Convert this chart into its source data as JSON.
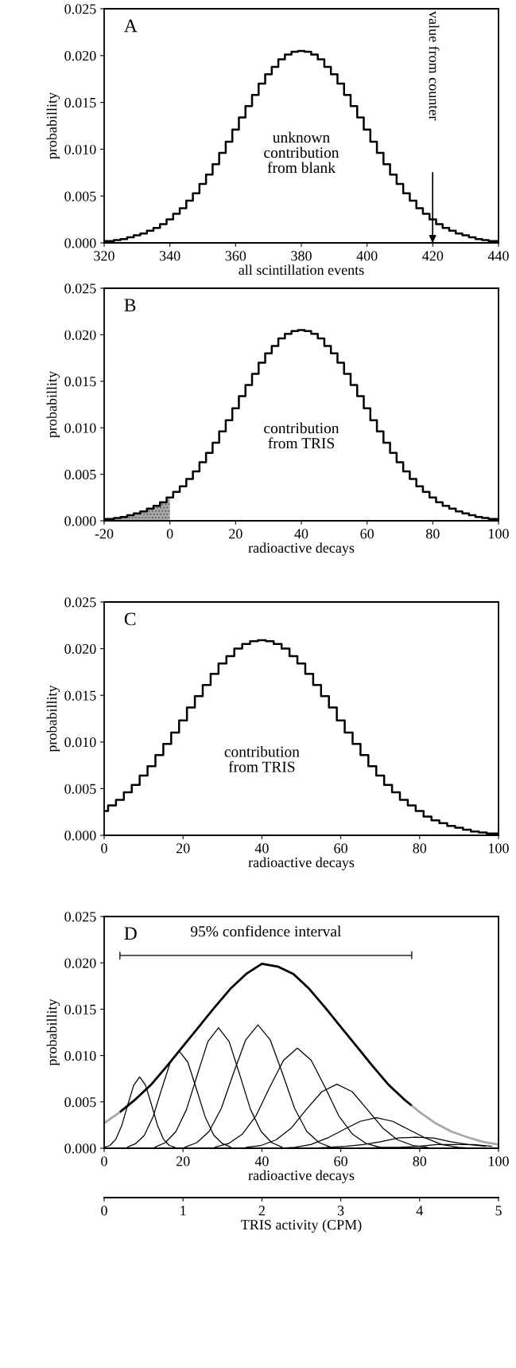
{
  "chart_data": [
    {
      "type": "step",
      "xlabel": "all scintillation events",
      "ylabel": "probabillity",
      "annotations": [
        "A",
        "unknown\ncontribution\nfrom blank",
        "value from counter"
      ],
      "xlim": [
        320,
        440
      ],
      "xticks": [
        320,
        340,
        360,
        380,
        400,
        420,
        440
      ],
      "ylim": [
        0,
        0.025
      ],
      "yticks": [
        {
          "value": 0,
          "label": "0.000"
        },
        0.005,
        {
          "value": 0.01,
          "label": "0.010"
        },
        0.015,
        {
          "value": 0.02,
          "label": "0.020"
        },
        0.025
      ],
      "series": [
        {
          "color": "#000000",
          "x": [
            320,
            322,
            324,
            326,
            328,
            330,
            332,
            334,
            336,
            338,
            340,
            342,
            344,
            346,
            348,
            350,
            352,
            354,
            356,
            358,
            360,
            362,
            364,
            366,
            368,
            370,
            372,
            374,
            376,
            378,
            380,
            382,
            384,
            386,
            388,
            390,
            392,
            394,
            396,
            398,
            400,
            402,
            404,
            406,
            408,
            410,
            412,
            414,
            416,
            418,
            420,
            422,
            424,
            426,
            428,
            430,
            432,
            434,
            436,
            438,
            440
          ],
          "values": [
            0.0002,
            0.0002,
            0.0003,
            0.0004,
            0.0006,
            0.0008,
            0.001,
            0.0013,
            0.0016,
            0.002,
            0.0025,
            0.0031,
            0.0037,
            0.0045,
            0.0053,
            0.0063,
            0.0073,
            0.0084,
            0.0096,
            0.0108,
            0.0121,
            0.0134,
            0.0146,
            0.0158,
            0.017,
            0.018,
            0.0188,
            0.0196,
            0.0201,
            0.0204,
            0.0205,
            0.0204,
            0.0201,
            0.0196,
            0.0188,
            0.018,
            0.017,
            0.0158,
            0.0146,
            0.0134,
            0.0121,
            0.0108,
            0.0096,
            0.0084,
            0.0073,
            0.0063,
            0.0053,
            0.0045,
            0.0037,
            0.0031,
            0.0025,
            0.002,
            0.0016,
            0.0013,
            0.001,
            0.0008,
            0.0006,
            0.0004,
            0.0003,
            0.0002,
            0.0002
          ]
        }
      ]
    },
    {
      "type": "step",
      "xlabel": "radioactive decays",
      "ylabel": "probabillity",
      "annotations": [
        "B",
        "contribution\nfrom TRIS"
      ],
      "xlim": [
        -20,
        100
      ],
      "xticks": [
        -20,
        0,
        20,
        40,
        60,
        80,
        100
      ],
      "ylim": [
        0,
        0.025
      ],
      "yticks": [
        {
          "value": 0,
          "label": "0.000"
        },
        0.005,
        {
          "value": 0.01,
          "label": "0.010"
        },
        0.015,
        {
          "value": 0.02,
          "label": "0.020"
        },
        0.025
      ],
      "series": [
        {
          "type": "area",
          "color": "#a8a8a8",
          "x": [
            -20,
            -18,
            -16,
            -14,
            -12,
            -10,
            -8,
            -6,
            -4,
            -2,
            0
          ],
          "values": [
            0.0002,
            0.0002,
            0.0003,
            0.0004,
            0.0006,
            0.0008,
            0.001,
            0.0013,
            0.0016,
            0.002,
            0.0025
          ]
        },
        {
          "color": "#000000",
          "x": [
            -20,
            -18,
            -16,
            -14,
            -12,
            -10,
            -8,
            -6,
            -4,
            -2,
            0,
            2,
            4,
            6,
            8,
            10,
            12,
            14,
            16,
            18,
            20,
            22,
            24,
            26,
            28,
            30,
            32,
            34,
            36,
            38,
            40,
            42,
            44,
            46,
            48,
            50,
            52,
            54,
            56,
            58,
            60,
            62,
            64,
            66,
            68,
            70,
            72,
            74,
            76,
            78,
            80,
            82,
            84,
            86,
            88,
            90,
            92,
            94,
            96,
            98,
            100
          ],
          "values": [
            0.0002,
            0.0002,
            0.0003,
            0.0004,
            0.0006,
            0.0008,
            0.001,
            0.0013,
            0.0016,
            0.002,
            0.0025,
            0.0031,
            0.0037,
            0.0045,
            0.0053,
            0.0063,
            0.0073,
            0.0084,
            0.0096,
            0.0108,
            0.0121,
            0.0134,
            0.0146,
            0.0158,
            0.017,
            0.018,
            0.0188,
            0.0196,
            0.0201,
            0.0204,
            0.0205,
            0.0204,
            0.0201,
            0.0196,
            0.0188,
            0.018,
            0.017,
            0.0158,
            0.0146,
            0.0134,
            0.0121,
            0.0108,
            0.0096,
            0.0084,
            0.0073,
            0.0063,
            0.0053,
            0.0045,
            0.0037,
            0.0031,
            0.0025,
            0.002,
            0.0016,
            0.0013,
            0.001,
            0.0008,
            0.0006,
            0.0004,
            0.0003,
            0.0002,
            0.0002
          ]
        }
      ]
    },
    {
      "type": "step",
      "xlabel": "radioactive decays",
      "ylabel": "probabillity",
      "annotations": [
        "C",
        "contribution\nfrom TRIS"
      ],
      "xlim": [
        0,
        100
      ],
      "xticks": [
        0,
        20,
        40,
        60,
        80,
        100
      ],
      "ylim": [
        0,
        0.025
      ],
      "yticks": [
        {
          "value": 0,
          "label": "0.000"
        },
        0.005,
        {
          "value": 0.01,
          "label": "0.010"
        },
        0.015,
        {
          "value": 0.02,
          "label": "0.020"
        },
        0.025
      ],
      "series": [
        {
          "color": "#000000",
          "x": [
            0,
            2,
            4,
            6,
            8,
            10,
            12,
            14,
            16,
            18,
            20,
            22,
            24,
            26,
            28,
            30,
            32,
            34,
            36,
            38,
            40,
            42,
            44,
            46,
            48,
            50,
            52,
            54,
            56,
            58,
            60,
            62,
            64,
            66,
            68,
            70,
            72,
            74,
            76,
            78,
            80,
            82,
            84,
            86,
            88,
            90,
            92,
            94,
            96,
            98,
            100
          ],
          "values": [
            0.0026,
            0.0032,
            0.0038,
            0.0046,
            0.0054,
            0.0064,
            0.0074,
            0.0086,
            0.0098,
            0.011,
            0.0123,
            0.0137,
            0.0149,
            0.0161,
            0.0173,
            0.0184,
            0.0192,
            0.02,
            0.0205,
            0.0208,
            0.0209,
            0.0208,
            0.0205,
            0.02,
            0.0192,
            0.0184,
            0.0173,
            0.0161,
            0.0149,
            0.0137,
            0.0123,
            0.011,
            0.0098,
            0.0086,
            0.0074,
            0.0064,
            0.0054,
            0.0046,
            0.0038,
            0.0032,
            0.0026,
            0.002,
            0.0016,
            0.0013,
            0.001,
            0.0008,
            0.0006,
            0.0004,
            0.0003,
            0.0002,
            0.0002
          ]
        }
      ]
    },
    {
      "type": "line",
      "xlabel": "radioactive decays",
      "ylabel": "probabillity",
      "x2label": "TRIS activity (CPM)",
      "annotations": [
        "D",
        "95% confidence interval"
      ],
      "xlim": [
        0,
        100
      ],
      "xticks": [
        0,
        20,
        40,
        60,
        80,
        100
      ],
      "x2lim": [
        0,
        5
      ],
      "x2ticks": [
        0,
        1,
        2,
        3,
        4,
        5
      ],
      "ylim": [
        0,
        0.025
      ],
      "yticks": [
        {
          "value": 0,
          "label": "0.000"
        },
        0.005,
        {
          "value": 0.01,
          "label": "0.010"
        },
        0.015,
        {
          "value": 0.02,
          "label": "0.020"
        },
        0.025
      ],
      "series": [
        {
          "color": "#a8a8a8",
          "x": [
            0,
            4
          ],
          "values": [
            0.0027,
            0.0039
          ]
        },
        {
          "color": "#000000",
          "x": [
            4,
            8,
            12,
            16,
            20,
            24,
            28,
            32,
            36,
            40,
            44,
            48,
            52,
            56,
            60,
            64,
            68,
            72,
            76,
            78
          ],
          "values": [
            0.0039,
            0.0053,
            0.0069,
            0.0089,
            0.011,
            0.0131,
            0.0152,
            0.0172,
            0.0188,
            0.0199,
            0.0196,
            0.0188,
            0.0172,
            0.0152,
            0.0131,
            0.011,
            0.0089,
            0.0069,
            0.0053,
            0.0046
          ]
        },
        {
          "color": "#a8a8a8",
          "x": [
            78,
            80,
            84,
            88,
            92,
            96,
            100
          ],
          "values": [
            0.0046,
            0.0039,
            0.0027,
            0.0018,
            0.0012,
            0.0007,
            0.0004
          ]
        },
        {
          "color": "#000000",
          "x": [
            4,
            4,
            4,
            78,
            78,
            78
          ],
          "values": [
            0.0212,
            0.0204,
            0.0208,
            0.0208,
            0.0212,
            0.0204
          ]
        },
        {
          "color": "#000000",
          "x": [
            0,
            1.5,
            3,
            4.5,
            6,
            7.5,
            9,
            10.5,
            12,
            13.5,
            15,
            16.5,
            18
          ],
          "values": [
            0.0001,
            0.0003,
            0.001,
            0.0025,
            0.0047,
            0.0068,
            0.0077,
            0.0068,
            0.0047,
            0.0025,
            0.001,
            0.0003,
            0.0001
          ]
        },
        {
          "color": "#000000",
          "x": [
            5.8,
            8,
            10.2,
            12.4,
            14.6,
            16.8,
            19,
            21.2,
            23.4,
            25.6,
            27.8,
            30,
            32.2
          ],
          "values": [
            0.0001,
            0.0005,
            0.0014,
            0.0034,
            0.0064,
            0.0093,
            0.0105,
            0.0093,
            0.0064,
            0.0034,
            0.0014,
            0.0005,
            0.0001
          ]
        },
        {
          "color": "#000000",
          "x": [
            12.8,
            15.5,
            18.2,
            20.9,
            23.6,
            26.3,
            29,
            31.7,
            34.4,
            37.1,
            39.8,
            42.5,
            45.2
          ],
          "values": [
            0.0001,
            0.0006,
            0.0018,
            0.0042,
            0.0079,
            0.0115,
            0.013,
            0.0115,
            0.0079,
            0.0042,
            0.0018,
            0.0006,
            0.0001
          ]
        },
        {
          "color": "#000000",
          "x": [
            20.4,
            23.5,
            26.6,
            29.7,
            32.8,
            35.9,
            39,
            42.1,
            45.2,
            48.3,
            51.4,
            54.5,
            57.6
          ],
          "values": [
            0.0001,
            0.0006,
            0.0018,
            0.0043,
            0.0081,
            0.0117,
            0.0133,
            0.0117,
            0.0081,
            0.0043,
            0.0018,
            0.0006,
            0.0001
          ]
        },
        {
          "color": "#000000",
          "x": [
            28,
            31.5,
            35,
            38.5,
            42,
            45.5,
            49,
            52.5,
            56,
            59.5,
            63,
            66.5,
            70
          ],
          "values": [
            0.0001,
            0.0005,
            0.0015,
            0.0035,
            0.0066,
            0.0095,
            0.0108,
            0.0095,
            0.0066,
            0.0035,
            0.0015,
            0.0005,
            0.0001
          ]
        },
        {
          "color": "#000000",
          "x": [
            35.9,
            39.8,
            43.6,
            47.5,
            51.3,
            55.2,
            59,
            62.9,
            66.7,
            70.6,
            74.4,
            78.3,
            82.1
          ],
          "values": [
            0.0001,
            0.0003,
            0.0009,
            0.0022,
            0.0042,
            0.0061,
            0.0069,
            0.0061,
            0.0042,
            0.0022,
            0.0009,
            0.0003,
            0.0001
          ]
        },
        {
          "color": "#000000",
          "x": [
            44.1,
            48.3,
            52.4,
            56.6,
            60.7,
            64.9,
            69,
            73.2,
            77.3,
            81.5,
            85.6,
            89.8,
            93.9
          ],
          "values": [
            0.0,
            0.0001,
            0.0004,
            0.0011,
            0.002,
            0.0029,
            0.0033,
            0.0029,
            0.002,
            0.0011,
            0.0004,
            0.0001,
            0.0
          ]
        },
        {
          "color": "#000000",
          "x": [
            52.3,
            56.8,
            61.2,
            65.7,
            70.1,
            74.6,
            79,
            83.5,
            87.9,
            92.4,
            96.8
          ],
          "values": [
            0.0,
            0.0001,
            0.0002,
            0.0004,
            0.0007,
            0.0011,
            0.0012,
            0.0011,
            0.0007,
            0.0004,
            0.0002
          ]
        },
        {
          "color": "#000000",
          "x": [
            60.8,
            65.5,
            70.2,
            74.9,
            79.6,
            84.3,
            89,
            93.7,
            98.4
          ],
          "values": [
            0.0,
            0.0,
            0.0001,
            0.0001,
            0.0002,
            0.0004,
            0.0004,
            0.0004,
            0.0002
          ]
        }
      ]
    }
  ]
}
